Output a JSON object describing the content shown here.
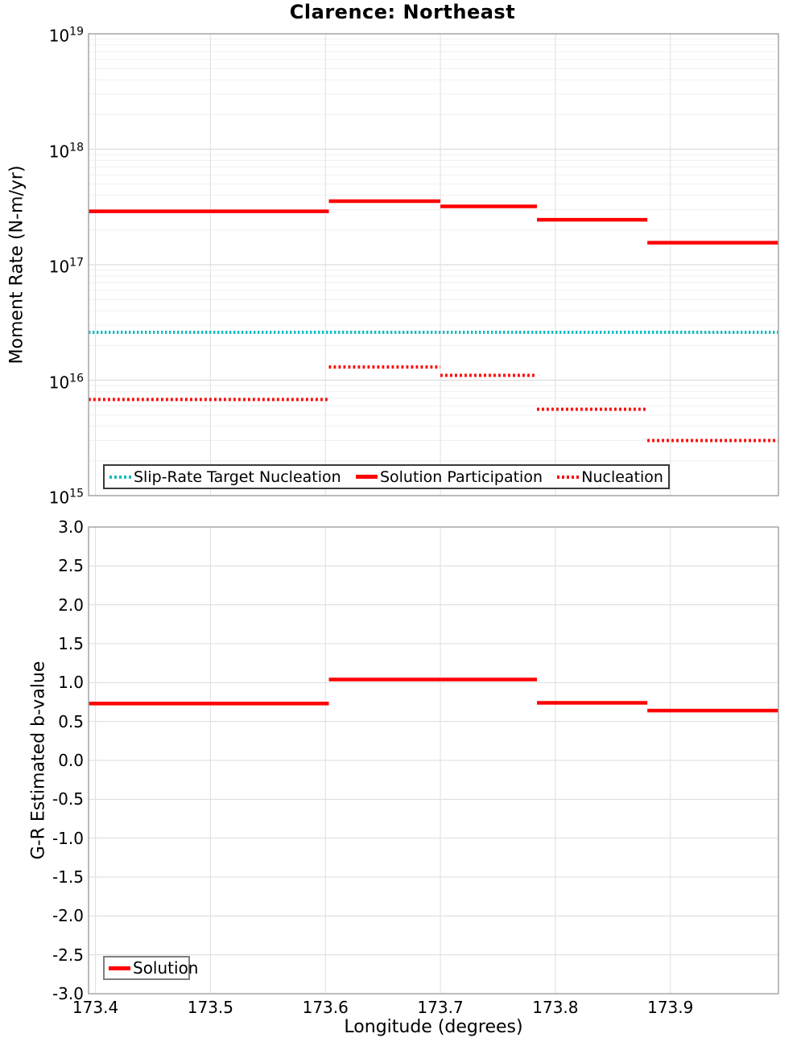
{
  "title": "Clarence: Northeast",
  "colors": {
    "red": "#ff0000",
    "cyan": "#16bcbe",
    "grid_major": "#dcdcdc",
    "grid_minor": "#f0f0f0",
    "grid_vertical": "#e4e4e4",
    "axis_border": "#a6a6a6"
  },
  "x_axis": {
    "label": "Longitude (degrees)",
    "range": [
      173.394,
      173.994
    ],
    "ticks": [
      173.4,
      173.5,
      173.6,
      173.7,
      173.8,
      173.9
    ],
    "tick_labels": [
      "173.4",
      "173.5",
      "173.6",
      "173.7",
      "173.8",
      "173.9"
    ]
  },
  "top_panel": {
    "ylabel": "Moment Rate (N-m/yr)",
    "y_scale": "log",
    "y_exp_range": [
      15,
      19
    ],
    "y_tick_exponents": [
      19,
      18,
      17,
      16,
      15
    ],
    "y_tick_base": "10",
    "legend": [
      {
        "label": "Slip-Rate Target Nucleation",
        "style": "dotted",
        "color": "#16bcbe"
      },
      {
        "label": "Solution Participation",
        "style": "solid",
        "color": "#ff0000"
      },
      {
        "label": "Nucleation",
        "style": "dotted",
        "color": "#ff0000"
      }
    ]
  },
  "bottom_panel": {
    "ylabel": "G-R Estimated b-value",
    "y_range": [
      -3.0,
      3.0
    ],
    "y_tick_labels": [
      "3.0",
      "2.5",
      "2.0",
      "1.5",
      "1.0",
      "0.5",
      "0.0",
      "-0.5",
      "-1.0",
      "-1.5",
      "-2.0",
      "-2.5",
      "-3.0"
    ],
    "y_tick_values": [
      3.0,
      2.5,
      2.0,
      1.5,
      1.0,
      0.5,
      0.0,
      -0.5,
      -1.0,
      -1.5,
      -2.0,
      -2.5,
      -3.0
    ],
    "legend": [
      {
        "label": "Solution",
        "style": "solid",
        "color": "#ff0000"
      }
    ]
  },
  "chart_data": [
    {
      "type": "line",
      "panel": "top",
      "title": "Clarence: Northeast",
      "xlabel": "Longitude (degrees)",
      "ylabel": "Moment Rate (N-m/yr)",
      "yscale": "log",
      "xlim": [
        173.394,
        173.994
      ],
      "ylim": [
        1000000000000000.0,
        1e+19
      ],
      "grid": true,
      "legend_position": "lower left",
      "series": [
        {
          "name": "Slip-Rate Target Nucleation",
          "style": "dotted",
          "color": "#16bcbe",
          "segments": [
            {
              "x": [
                173.394,
                173.994
              ],
              "y": 2.6e+16
            }
          ]
        },
        {
          "name": "Solution Participation",
          "style": "solid",
          "color": "#ff0000",
          "segments": [
            {
              "x": [
                173.394,
                173.603
              ],
              "y": 2.9e+17
            },
            {
              "x": [
                173.603,
                173.7
              ],
              "y": 3.55e+17
            },
            {
              "x": [
                173.7,
                173.784
              ],
              "y": 3.2e+17
            },
            {
              "x": [
                173.784,
                173.88
              ],
              "y": 2.45e+17
            },
            {
              "x": [
                173.88,
                173.994
              ],
              "y": 1.55e+17
            }
          ]
        },
        {
          "name": "Nucleation",
          "style": "dotted",
          "color": "#ff0000",
          "segments": [
            {
              "x": [
                173.394,
                173.603
              ],
              "y": 6800000000000000.0
            },
            {
              "x": [
                173.603,
                173.7
              ],
              "y": 1.3e+16
            },
            {
              "x": [
                173.7,
                173.784
              ],
              "y": 1.1e+16
            },
            {
              "x": [
                173.784,
                173.88
              ],
              "y": 5600000000000000.0
            },
            {
              "x": [
                173.88,
                173.994
              ],
              "y": 3000000000000000.0
            }
          ]
        }
      ]
    },
    {
      "type": "line",
      "panel": "bottom",
      "xlabel": "Longitude (degrees)",
      "ylabel": "G-R Estimated b-value",
      "yscale": "linear",
      "xlim": [
        173.394,
        173.994
      ],
      "ylim": [
        -3.0,
        3.0
      ],
      "grid": true,
      "legend_position": "lower left",
      "series": [
        {
          "name": "Solution",
          "style": "solid",
          "color": "#ff0000",
          "segments": [
            {
              "x": [
                173.394,
                173.603
              ],
              "y": 0.73
            },
            {
              "x": [
                173.603,
                173.7
              ],
              "y": 1.04
            },
            {
              "x": [
                173.7,
                173.784
              ],
              "y": 1.04
            },
            {
              "x": [
                173.784,
                173.88
              ],
              "y": 0.74
            },
            {
              "x": [
                173.88,
                173.994
              ],
              "y": 0.64
            }
          ]
        }
      ]
    }
  ]
}
